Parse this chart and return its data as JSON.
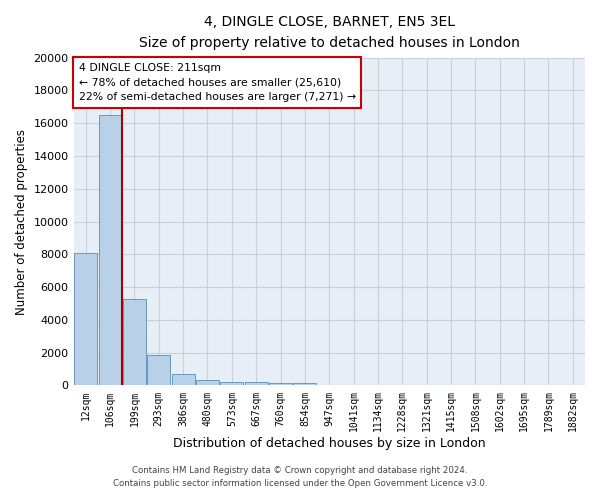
{
  "title1": "4, DINGLE CLOSE, BARNET, EN5 3EL",
  "title2": "Size of property relative to detached houses in London",
  "xlabel": "Distribution of detached houses by size in London",
  "ylabel": "Number of detached properties",
  "categories": [
    "12sqm",
    "106sqm",
    "199sqm",
    "293sqm",
    "386sqm",
    "480sqm",
    "573sqm",
    "667sqm",
    "760sqm",
    "854sqm",
    "947sqm",
    "1041sqm",
    "1134sqm",
    "1228sqm",
    "1321sqm",
    "1415sqm",
    "1508sqm",
    "1602sqm",
    "1695sqm",
    "1789sqm",
    "1882sqm"
  ],
  "values": [
    8100,
    16500,
    5300,
    1850,
    700,
    320,
    230,
    200,
    180,
    160,
    0,
    0,
    0,
    0,
    0,
    0,
    0,
    0,
    0,
    0,
    0
  ],
  "bar_color": "#b8d0e8",
  "bar_edge_color": "#6699bb",
  "vline_color": "#aa0000",
  "annotation_text": "4 DINGLE CLOSE: 211sqm\n← 78% of detached houses are smaller (25,610)\n22% of semi-detached houses are larger (7,271) →",
  "annotation_box_color": "#ffffff",
  "annotation_edge_color": "#cc0000",
  "ylim": [
    0,
    20000
  ],
  "yticks": [
    0,
    2000,
    4000,
    6000,
    8000,
    10000,
    12000,
    14000,
    16000,
    18000,
    20000
  ],
  "bg_color": "#e8eef6",
  "grid_color": "#c8d0dc",
  "footnote1": "Contains HM Land Registry data © Crown copyright and database right 2024.",
  "footnote2": "Contains public sector information licensed under the Open Government Licence v3.0."
}
